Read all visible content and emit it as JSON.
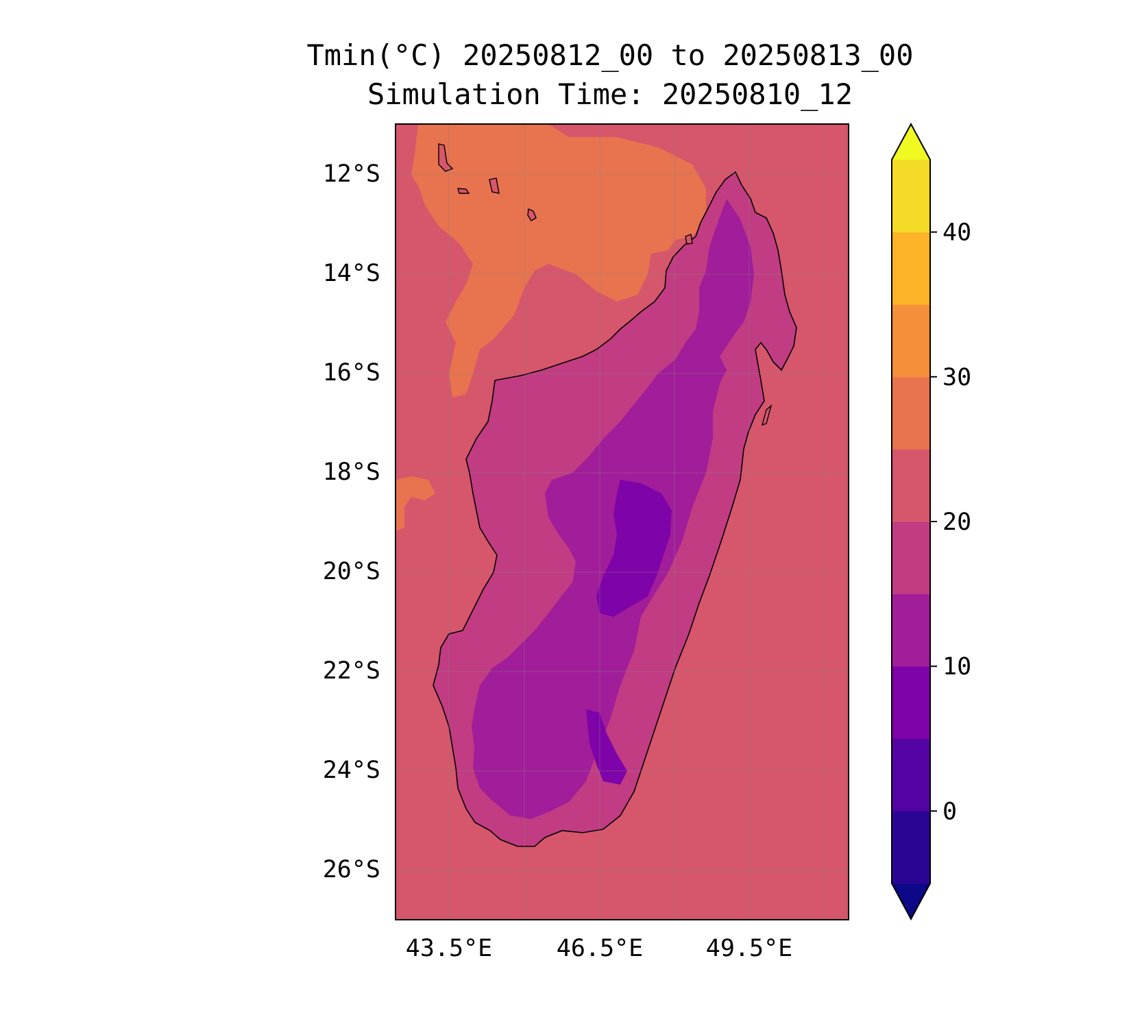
{
  "title": {
    "line1": "Tmin(°C) 20250812_00 to 20250813_00",
    "line2": "Simulation Time: 20250810_12"
  },
  "map": {
    "lat_ticks": [
      "12°S",
      "14°S",
      "16°S",
      "18°S",
      "20°S",
      "22°S",
      "24°S",
      "26°S"
    ],
    "lon_ticks": [
      "43.5°E",
      "46.5°E",
      "49.5°E"
    ],
    "lon_range": [
      42.3,
      51.4
    ],
    "lat_range": [
      -27.0,
      -11.0
    ],
    "coastline_color": "#000000",
    "background_class_color": "#d6566b"
  },
  "colorbar": {
    "ticks": [
      "0",
      "10",
      "20",
      "30",
      "40"
    ],
    "levels": [
      -5,
      0,
      5,
      10,
      15,
      20,
      25,
      30,
      35,
      40,
      45
    ],
    "colors": [
      "#0d0887",
      "#2a0593",
      "#5302a3",
      "#7e03a8",
      "#a21d9a",
      "#c13c82",
      "#d6566b",
      "#e8734f",
      "#f68f3a",
      "#fcb328",
      "#f4db27",
      "#f0f921"
    ],
    "extend": "both"
  }
}
